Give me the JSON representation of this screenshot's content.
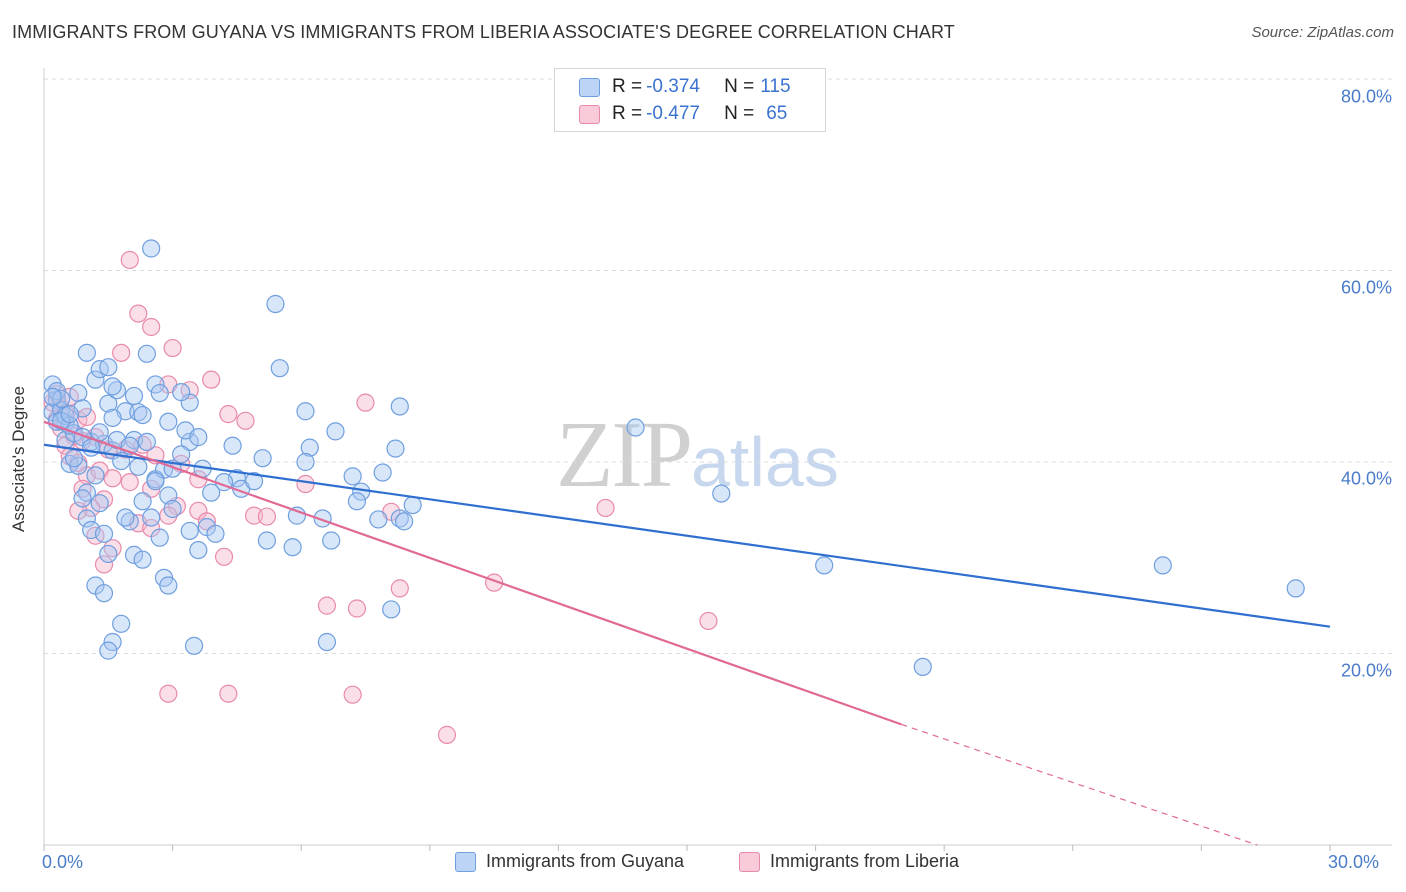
{
  "header": {
    "title": "IMMIGRANTS FROM GUYANA VS IMMIGRANTS FROM LIBERIA ASSOCIATE'S DEGREE CORRELATION CHART",
    "source": "Source: ZipAtlas.com"
  },
  "watermark": {
    "zip": "ZIP",
    "atlas": "atlas"
  },
  "legend": {
    "rows": [
      {
        "r_label": "R = ",
        "r_value": "-0.374",
        "n_label": "N = ",
        "n_value": "115"
      },
      {
        "r_label": "R = ",
        "r_value": "-0.477",
        "n_label": "N = ",
        "n_value": "65"
      }
    ]
  },
  "colors": {
    "guyana_fill": "#a9c8f2",
    "guyana_stroke": "#6f9fdf",
    "guyana_line": "#2f6fd0",
    "liberia_fill": "#f6b8cc",
    "liberia_stroke": "#e88aab",
    "liberia_line": "#e06a95",
    "grid": "#dddddd",
    "tick_text": "#4a7cc9"
  },
  "chart_data": {
    "type": "scatter",
    "title": "IMMIGRANTS FROM GUYANA VS IMMIGRANTS FROM LIBERIA ASSOCIATE'S DEGREE CORRELATION CHART",
    "xlabel": "",
    "ylabel": "Associate's Degree",
    "xlim": [
      0,
      30
    ],
    "ylim": [
      0,
      80
    ],
    "x_tick_labels": [
      "0.0%",
      "30.0%"
    ],
    "y_tick_labels": [
      "20.0%",
      "40.0%",
      "60.0%",
      "80.0%"
    ],
    "y_ticks": [
      20,
      40,
      60,
      80
    ],
    "grid": true,
    "legend_position": "top-center",
    "series": [
      {
        "name": "Immigrants from Guyana",
        "R": -0.374,
        "N": 115,
        "trend": {
          "x": [
            0,
            30
          ],
          "y": [
            41.8,
            22.8
          ],
          "style": "solid"
        },
        "points": [
          [
            0.2,
            48.1
          ],
          [
            0.3,
            46.5
          ],
          [
            0.2,
            45.2
          ],
          [
            0.4,
            45.4
          ],
          [
            0.5,
            44.1
          ],
          [
            0.3,
            44.2
          ],
          [
            0.5,
            42.3
          ],
          [
            0.7,
            43.0
          ],
          [
            0.8,
            47.2
          ],
          [
            1.0,
            51.4
          ],
          [
            1.2,
            48.6
          ],
          [
            1.3,
            49.7
          ],
          [
            1.5,
            46.1
          ],
          [
            1.7,
            47.5
          ],
          [
            1.9,
            45.3
          ],
          [
            1.1,
            42.1
          ],
          [
            1.4,
            41.9
          ],
          [
            1.6,
            41.2
          ],
          [
            1.8,
            40.1
          ],
          [
            0.6,
            39.8
          ],
          [
            0.8,
            39.6
          ],
          [
            1.0,
            36.8
          ],
          [
            1.2,
            38.6
          ],
          [
            0.9,
            36.2
          ],
          [
            1.0,
            34.1
          ],
          [
            1.1,
            32.9
          ],
          [
            1.4,
            32.5
          ],
          [
            1.5,
            30.4
          ],
          [
            1.2,
            27.1
          ],
          [
            1.4,
            26.3
          ],
          [
            2.5,
            62.3
          ],
          [
            2.4,
            51.3
          ],
          [
            2.6,
            48.1
          ],
          [
            2.7,
            47.2
          ],
          [
            2.2,
            45.2
          ],
          [
            2.1,
            42.3
          ],
          [
            2.4,
            42.1
          ],
          [
            2.6,
            38.2
          ],
          [
            2.8,
            39.2
          ],
          [
            2.9,
            36.5
          ],
          [
            2.2,
            39.5
          ],
          [
            2.3,
            35.9
          ],
          [
            2.5,
            34.2
          ],
          [
            2.0,
            33.8
          ],
          [
            2.1,
            30.3
          ],
          [
            2.3,
            29.8
          ],
          [
            2.7,
            32.1
          ],
          [
            2.8,
            27.9
          ],
          [
            2.9,
            27.1
          ],
          [
            3.0,
            35.1
          ],
          [
            1.8,
            23.1
          ],
          [
            1.6,
            21.2
          ],
          [
            1.5,
            20.3
          ],
          [
            3.4,
            46.2
          ],
          [
            3.4,
            42.1
          ],
          [
            3.7,
            39.3
          ],
          [
            3.9,
            36.8
          ],
          [
            3.4,
            32.8
          ],
          [
            3.6,
            30.8
          ],
          [
            3.5,
            20.8
          ],
          [
            5.4,
            56.5
          ],
          [
            5.5,
            49.8
          ],
          [
            6.1,
            45.3
          ],
          [
            6.2,
            41.5
          ],
          [
            6.1,
            40.0
          ],
          [
            5.9,
            34.4
          ],
          [
            6.5,
            34.1
          ],
          [
            6.7,
            31.8
          ],
          [
            6.6,
            21.2
          ],
          [
            7.4,
            36.9
          ],
          [
            7.3,
            35.9
          ],
          [
            7.8,
            34.0
          ],
          [
            8.3,
            45.8
          ],
          [
            8.2,
            41.4
          ],
          [
            8.3,
            34.1
          ],
          [
            8.4,
            33.8
          ],
          [
            8.6,
            35.5
          ],
          [
            8.1,
            24.6
          ],
          [
            13.8,
            43.6
          ],
          [
            15.8,
            36.7
          ],
          [
            18.2,
            29.2
          ],
          [
            20.5,
            18.6
          ],
          [
            26.1,
            29.2
          ],
          [
            29.2,
            26.8
          ],
          [
            0.3,
            47.4
          ],
          [
            0.4,
            46.6
          ],
          [
            0.9,
            45.6
          ],
          [
            0.5,
            44.8
          ],
          [
            0.6,
            43.8
          ],
          [
            1.3,
            43.1
          ],
          [
            1.7,
            42.3
          ],
          [
            2.0,
            41.7
          ],
          [
            3.2,
            40.8
          ],
          [
            3.0,
            39.3
          ],
          [
            2.6,
            38.0
          ],
          [
            4.5,
            38.3
          ],
          [
            4.2,
            37.9
          ],
          [
            4.6,
            37.2
          ],
          [
            3.8,
            33.2
          ],
          [
            4.0,
            32.5
          ],
          [
            4.9,
            38.0
          ],
          [
            5.2,
            31.8
          ],
          [
            5.8,
            31.1
          ],
          [
            1.9,
            34.2
          ],
          [
            1.3,
            35.7
          ],
          [
            0.7,
            40.4
          ],
          [
            1.6,
            47.9
          ],
          [
            2.1,
            46.9
          ],
          [
            3.2,
            47.3
          ],
          [
            1.5,
            49.9
          ],
          [
            0.2,
            46.8
          ],
          [
            0.4,
            44.3
          ],
          [
            0.6,
            45.0
          ],
          [
            0.9,
            42.6
          ],
          [
            1.1,
            41.5
          ],
          [
            1.6,
            44.6
          ],
          [
            2.3,
            44.9
          ],
          [
            3.3,
            43.3
          ],
          [
            5.1,
            40.4
          ],
          [
            7.2,
            38.5
          ],
          [
            4.4,
            41.7
          ],
          [
            3.6,
            42.6
          ],
          [
            2.9,
            44.2
          ],
          [
            6.8,
            43.2
          ],
          [
            7.9,
            38.9
          ]
        ]
      },
      {
        "name": "Immigrants from Liberia",
        "R": -0.477,
        "N": 65,
        "trend": {
          "x": [
            0,
            20
          ],
          "y": [
            44.2,
            12.6
          ],
          "dashed_to": [
            28.3,
            0
          ],
          "style": "solid-then-dashed"
        },
        "points": [
          [
            0.2,
            46.2
          ],
          [
            0.4,
            45.6
          ],
          [
            0.3,
            44.5
          ],
          [
            0.5,
            45.1
          ],
          [
            0.6,
            46.8
          ],
          [
            0.4,
            43.5
          ],
          [
            0.7,
            42.7
          ],
          [
            0.5,
            41.7
          ],
          [
            0.8,
            44.4
          ],
          [
            0.9,
            42.2
          ],
          [
            1.0,
            44.7
          ],
          [
            1.2,
            42.6
          ],
          [
            0.6,
            40.6
          ],
          [
            0.8,
            39.9
          ],
          [
            1.0,
            38.6
          ],
          [
            0.9,
            37.2
          ],
          [
            1.3,
            39.1
          ],
          [
            1.5,
            41.3
          ],
          [
            1.6,
            38.3
          ],
          [
            1.4,
            36.1
          ],
          [
            1.1,
            35.2
          ],
          [
            0.8,
            34.9
          ],
          [
            1.2,
            32.3
          ],
          [
            1.6,
            31.0
          ],
          [
            2.0,
            61.1
          ],
          [
            2.2,
            55.5
          ],
          [
            2.5,
            54.1
          ],
          [
            1.8,
            51.4
          ],
          [
            3.0,
            51.9
          ],
          [
            2.9,
            48.1
          ],
          [
            3.4,
            47.5
          ],
          [
            3.9,
            48.6
          ],
          [
            4.3,
            45.0
          ],
          [
            2.3,
            41.8
          ],
          [
            2.6,
            40.7
          ],
          [
            3.2,
            39.8
          ],
          [
            2.0,
            37.9
          ],
          [
            2.5,
            37.2
          ],
          [
            3.1,
            35.4
          ],
          [
            3.6,
            34.9
          ],
          [
            2.9,
            34.4
          ],
          [
            2.2,
            33.6
          ],
          [
            3.8,
            33.8
          ],
          [
            4.2,
            30.1
          ],
          [
            4.9,
            34.4
          ],
          [
            5.2,
            34.3
          ],
          [
            6.1,
            37.7
          ],
          [
            6.6,
            25.0
          ],
          [
            7.3,
            24.7
          ],
          [
            7.5,
            46.2
          ],
          [
            8.1,
            34.8
          ],
          [
            8.3,
            26.8
          ],
          [
            10.5,
            27.4
          ],
          [
            13.1,
            35.2
          ],
          [
            15.5,
            23.4
          ],
          [
            2.9,
            15.8
          ],
          [
            4.3,
            15.8
          ],
          [
            7.2,
            15.7
          ],
          [
            9.4,
            11.5
          ],
          [
            1.4,
            29.3
          ],
          [
            2.5,
            33.1
          ],
          [
            3.6,
            38.2
          ],
          [
            4.7,
            44.3
          ],
          [
            1.9,
            41.3
          ],
          [
            0.3,
            47.1
          ]
        ]
      }
    ]
  },
  "bottom_legend": {
    "items": [
      {
        "label": "Immigrants from Guyana"
      },
      {
        "label": "Immigrants from Liberia"
      }
    ]
  }
}
